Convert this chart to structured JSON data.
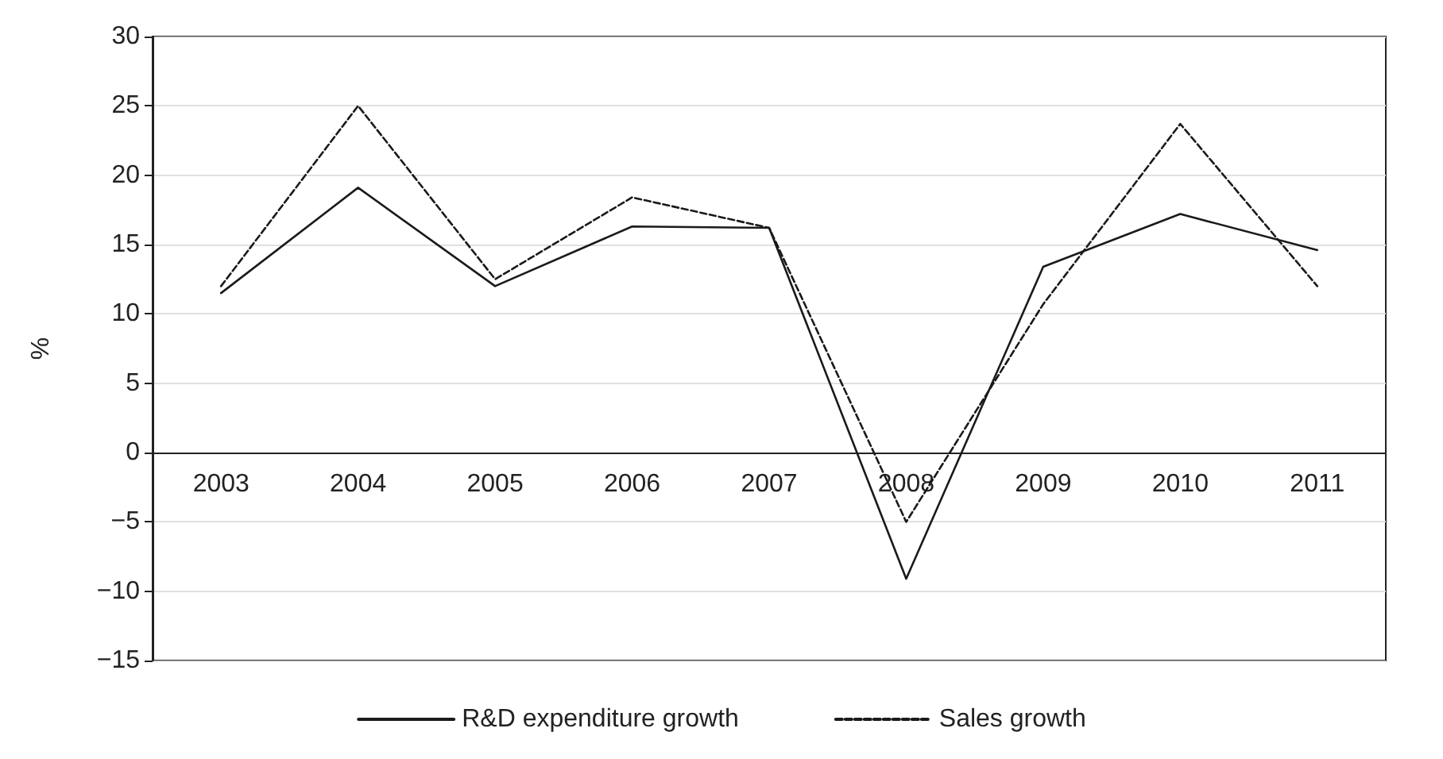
{
  "chart_data": {
    "type": "line",
    "ylabel": "%",
    "categories": [
      "2003",
      "2004",
      "2005",
      "2006",
      "2007",
      "2008",
      "2009",
      "2010",
      "2011"
    ],
    "series": [
      {
        "name": "R&D expenditure growth",
        "color": "#1a1a1a",
        "line_style": "solid",
        "values": [
          11.5,
          19.1,
          12.0,
          16.3,
          16.2,
          -9.1,
          13.4,
          17.2,
          14.6
        ]
      },
      {
        "name": "Sales growth",
        "color": "#1a1a1a",
        "line_style": "dashed",
        "values": [
          12.0,
          25.0,
          12.5,
          18.4,
          16.2,
          -5.0,
          10.7,
          23.7,
          12.0
        ]
      }
    ],
    "ylim": [
      -15,
      30
    ],
    "yticks": [
      -15,
      -10,
      -5,
      0,
      5,
      10,
      15,
      20,
      25,
      30
    ],
    "grid": "y",
    "legend": "bottom",
    "marker": "none"
  }
}
